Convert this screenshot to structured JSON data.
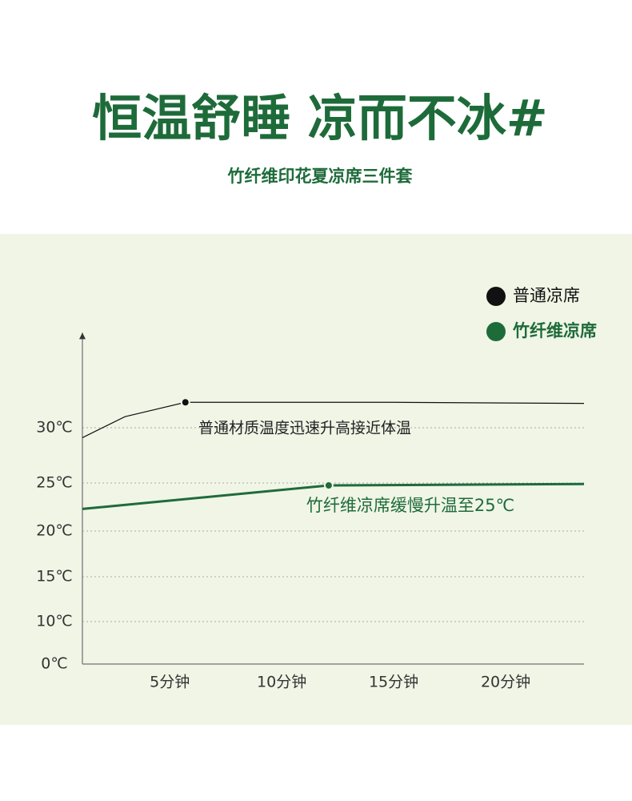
{
  "chart_data": {
    "type": "line",
    "title": "恒温舒睡 凉而不冰#",
    "subtitle": "竹纤维印花夏凉席三件套",
    "xlim": [
      1.1,
      23.5
    ],
    "xticks": [
      {
        "value": 5,
        "label": "5分钟"
      },
      {
        "value": 10,
        "label": "10分钟"
      },
      {
        "value": 15,
        "label": "15分钟"
      },
      {
        "value": 20,
        "label": "20分钟"
      }
    ],
    "ylim": [
      0,
      38.6
    ],
    "yticks": [
      {
        "value": 0,
        "label": "0℃"
      },
      {
        "value": 10,
        "label": "10℃"
      },
      {
        "value": 15,
        "label": "15℃"
      },
      {
        "value": 20,
        "label": "20℃"
      },
      {
        "value": 25,
        "label": "25℃"
      },
      {
        "value": 30,
        "label": "30℃"
      }
    ],
    "grid": true,
    "legend": "top-right",
    "series": [
      {
        "name": "普通凉席",
        "color": "#111111",
        "marked_point": 2,
        "annotation": "普通材质温度迅速升高接近体温",
        "x": [
          1.1,
          3,
          5.7,
          15,
          23.5
        ],
        "values": [
          29.1,
          31.0,
          32.3,
          32.3,
          32.2
        ]
      },
      {
        "name": "竹纤维凉席",
        "color": "#1e6b3a",
        "marked_point": 1,
        "annotation": "竹纤维凉席缓慢升温至25℃",
        "x": [
          1.1,
          12.1,
          23.5
        ],
        "values": [
          22.3,
          24.75,
          24.9
        ]
      }
    ]
  }
}
